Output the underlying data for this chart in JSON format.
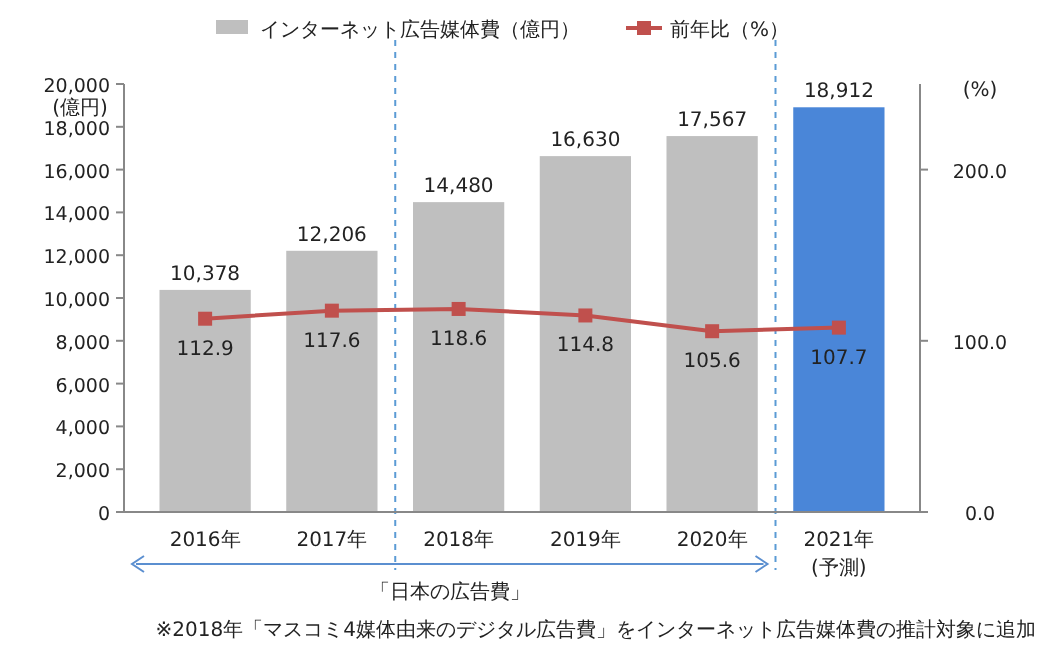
{
  "chart_data": {
    "type": "bar",
    "categories": [
      "2016年",
      "2017年",
      "2018年",
      "2019年",
      "2020年",
      "2021年\n(予測)"
    ],
    "ylabel": "(億円)",
    "y2label": "(%)",
    "ylim": [
      0,
      20000
    ],
    "yticks": [
      {
        "value": 0,
        "label": "0"
      },
      {
        "value": 2000,
        "label": "2,000"
      },
      {
        "value": 4000,
        "label": "4,000"
      },
      {
        "value": 6000,
        "label": "6,000"
      },
      {
        "value": 8000,
        "label": "8,000"
      },
      {
        "value": 10000,
        "label": "10,000"
      },
      {
        "value": 12000,
        "label": "12,000"
      },
      {
        "value": 14000,
        "label": "14,000"
      },
      {
        "value": 16000,
        "label": "16,000"
      },
      {
        "value": 18000,
        "label": "18,000"
      },
      {
        "value": 20000,
        "label": "20,000"
      }
    ],
    "y2lim": [
      0,
      250
    ],
    "y2ticks": [
      {
        "value": 0,
        "label": "0.0"
      },
      {
        "value": 100,
        "label": "100.0"
      },
      {
        "value": 200,
        "label": "200.0"
      }
    ],
    "series": [
      {
        "name": "インターネット広告媒体費（億円）",
        "color": "#bfbfbf",
        "colors": [
          "#bfbfbf",
          "#bfbfbf",
          "#bfbfbf",
          "#bfbfbf",
          "#bfbfbf",
          "#4a86d8"
        ],
        "values": [
          10378,
          12206,
          14480,
          16630,
          17567,
          18912
        ],
        "value_labels": [
          "10,378",
          "12,206",
          "14,480",
          "16,630",
          "17,567",
          "18,912"
        ]
      },
      {
        "name": "前年比（%）",
        "type": "line",
        "axis": "y2",
        "color": "#c0504d",
        "marker": "square",
        "values": [
          112.9,
          117.6,
          118.6,
          114.8,
          105.6,
          107.7
        ],
        "value_labels": [
          "112.9",
          "117.6",
          "118.6",
          "114.8",
          "105.6",
          "107.7"
        ]
      }
    ],
    "legend": "top",
    "annotations": [
      "「日本の広告費」",
      "※2018年「マスコミ4媒体由来のデジタル広告費」をインターネット広告媒体費の推計対象に追加"
    ]
  }
}
